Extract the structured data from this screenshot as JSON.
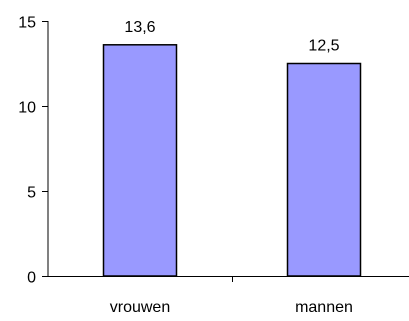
{
  "chart_data": {
    "type": "bar",
    "categories": [
      "vrouwen",
      "mannen"
    ],
    "values": [
      13.6,
      12.5
    ],
    "data_labels": [
      "13,6",
      "12,5"
    ],
    "title": "",
    "xlabel": "",
    "ylabel": "",
    "ylim": [
      0,
      15
    ],
    "yticks": [
      0,
      5,
      10,
      15
    ],
    "ytick_labels": [
      "0",
      "5",
      "10",
      "15"
    ],
    "grid": false,
    "legend": "none",
    "bar_color": "#9999ff",
    "bar_edge_color": "#000000"
  }
}
